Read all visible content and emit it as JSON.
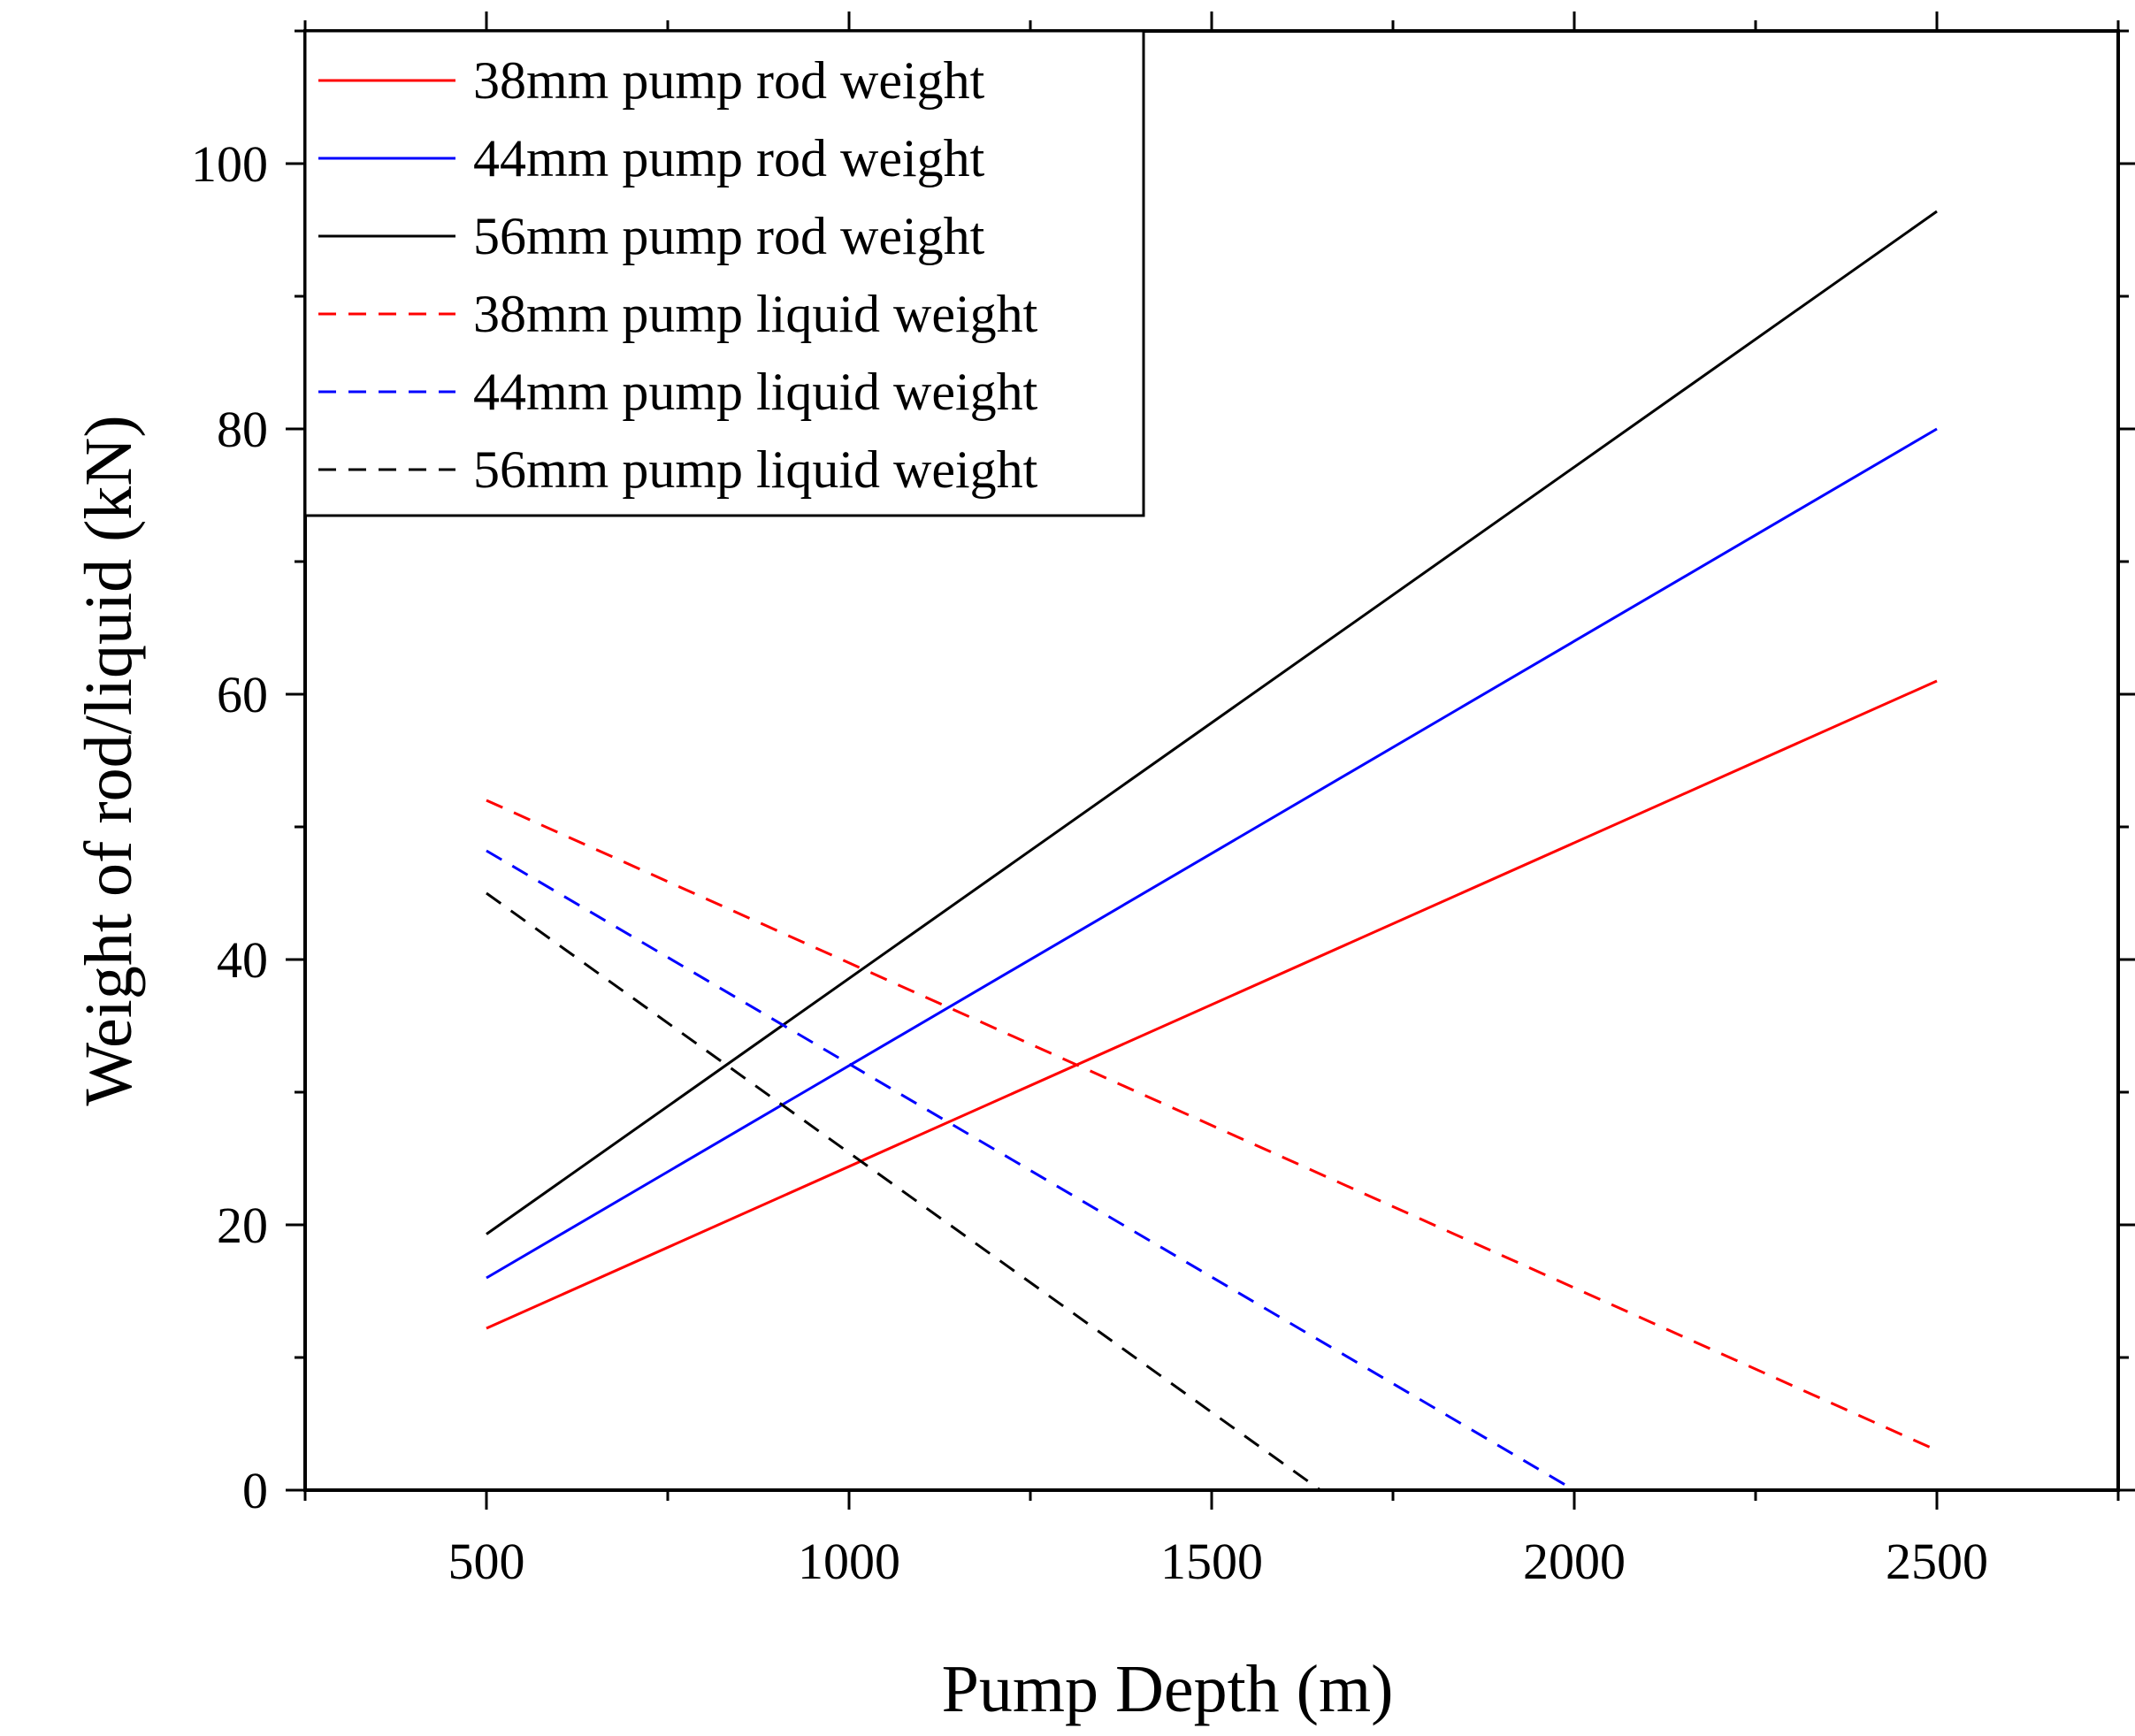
{
  "chart_data": {
    "type": "line",
    "title": "",
    "xlabel": "Pump Depth (m)",
    "ylabel": "Weight of rod/liquid (kN)",
    "xlim": [
      250,
      2750
    ],
    "ylim": [
      0,
      110
    ],
    "xticks": [
      500,
      1000,
      1500,
      2000,
      2500
    ],
    "yticks": [
      0,
      20,
      40,
      60,
      80,
      100
    ],
    "xtick_labels": [
      "500",
      "1000",
      "1500",
      "2000",
      "2500"
    ],
    "ytick_labels": [
      "0",
      "20",
      "40",
      "60",
      "80",
      "100"
    ],
    "x_minor_step": 250,
    "y_minor_step": 10,
    "grid": false,
    "legend_position": "top-left",
    "series": [
      {
        "name": "38mm pump rod weight",
        "color": "#ff0000",
        "dash": "solid",
        "x": [
          500,
          2500
        ],
        "values": [
          12.2,
          61.0
        ]
      },
      {
        "name": "44mm pump rod weight",
        "color": "#0000ff",
        "dash": "solid",
        "x": [
          500,
          2500
        ],
        "values": [
          16.0,
          80.0
        ]
      },
      {
        "name": "56mm pump rod weight",
        "color": "#000000",
        "dash": "solid",
        "x": [
          500,
          2500
        ],
        "values": [
          19.3,
          96.4
        ]
      },
      {
        "name": "38mm pump liquid weight",
        "color": "#ff0000",
        "dash": "dashed",
        "x": [
          500,
          2500
        ],
        "values": [
          52.0,
          3.0
        ]
      },
      {
        "name": "44mm pump liquid weight",
        "color": "#0000ff",
        "dash": "dashed",
        "x": [
          500,
          2000
        ],
        "values": [
          48.2,
          0.0
        ]
      },
      {
        "name": "56mm pump liquid weight",
        "color": "#000000",
        "dash": "dashed",
        "x": [
          500,
          1650
        ],
        "values": [
          45.0,
          0.0
        ]
      }
    ]
  }
}
